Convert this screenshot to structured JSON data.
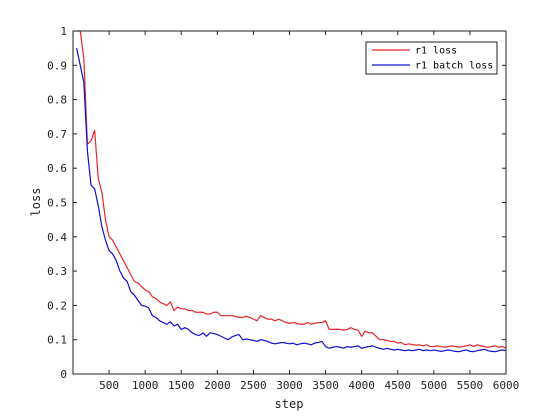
{
  "chart_data": {
    "type": "line",
    "title": "",
    "xlabel": "step",
    "ylabel": "loss",
    "xlim": [
      0,
      6000
    ],
    "ylim": [
      0,
      1
    ],
    "xticks": [
      500,
      1000,
      1500,
      2000,
      2500,
      3000,
      3500,
      4000,
      4500,
      5000,
      5500,
      6000
    ],
    "yticks": [
      0,
      0.1,
      0.2,
      0.3,
      0.4,
      0.5,
      0.6,
      0.7,
      0.8,
      0.9,
      1
    ],
    "xtick_labels": [
      "500",
      "1000",
      "1500",
      "2000",
      "2500",
      "3000",
      "3500",
      "4000",
      "4500",
      "5000",
      "5500",
      "6000"
    ],
    "ytick_labels": [
      "0",
      "0.1",
      "0.2",
      "0.3",
      "0.4",
      "0.5",
      "0.6",
      "0.7",
      "0.8",
      "0.9",
      "1"
    ],
    "grid": false,
    "legend_position": "top-right",
    "series": [
      {
        "name": "r1 loss",
        "color": "#e8262a",
        "x": [
          50,
          100,
          150,
          200,
          250,
          300,
          350,
          400,
          450,
          500,
          550,
          600,
          650,
          700,
          750,
          800,
          850,
          900,
          950,
          1000,
          1050,
          1100,
          1150,
          1200,
          1250,
          1300,
          1350,
          1400,
          1450,
          1500,
          1550,
          1600,
          1650,
          1700,
          1750,
          1800,
          1850,
          1900,
          1950,
          2000,
          2050,
          2100,
          2150,
          2200,
          2250,
          2300,
          2350,
          2400,
          2450,
          2500,
          2550,
          2600,
          2650,
          2700,
          2750,
          2800,
          2850,
          2900,
          2950,
          3000,
          3050,
          3100,
          3150,
          3200,
          3250,
          3300,
          3350,
          3400,
          3450,
          3500,
          3550,
          3600,
          3650,
          3700,
          3750,
          3800,
          3850,
          3900,
          3950,
          4000,
          4050,
          4100,
          4150,
          4200,
          4250,
          4300,
          4350,
          4400,
          4450,
          4500,
          4550,
          4600,
          4650,
          4700,
          4750,
          4800,
          4850,
          4900,
          4950,
          5000,
          5050,
          5100,
          5150,
          5200,
          5250,
          5300,
          5350,
          5400,
          5450,
          5500,
          5550,
          5600,
          5650,
          5700,
          5750,
          5800,
          5850,
          5900,
          5950,
          6000
        ],
        "values": [
          1.0,
          1.0,
          0.92,
          0.67,
          0.68,
          0.71,
          0.57,
          0.53,
          0.45,
          0.4,
          0.39,
          0.37,
          0.35,
          0.33,
          0.31,
          0.29,
          0.27,
          0.265,
          0.255,
          0.245,
          0.24,
          0.225,
          0.22,
          0.21,
          0.205,
          0.2,
          0.21,
          0.185,
          0.195,
          0.19,
          0.19,
          0.185,
          0.185,
          0.18,
          0.18,
          0.18,
          0.175,
          0.175,
          0.18,
          0.18,
          0.17,
          0.17,
          0.17,
          0.17,
          0.168,
          0.165,
          0.165,
          0.168,
          0.165,
          0.16,
          0.155,
          0.17,
          0.165,
          0.16,
          0.16,
          0.155,
          0.16,
          0.155,
          0.15,
          0.148,
          0.15,
          0.148,
          0.145,
          0.145,
          0.15,
          0.145,
          0.148,
          0.15,
          0.15,
          0.155,
          0.13,
          0.13,
          0.13,
          0.13,
          0.128,
          0.13,
          0.135,
          0.13,
          0.128,
          0.11,
          0.125,
          0.12,
          0.12,
          0.11,
          0.1,
          0.1,
          0.098,
          0.095,
          0.095,
          0.09,
          0.092,
          0.085,
          0.088,
          0.086,
          0.084,
          0.085,
          0.082,
          0.085,
          0.08,
          0.08,
          0.082,
          0.08,
          0.078,
          0.08,
          0.082,
          0.08,
          0.078,
          0.08,
          0.082,
          0.085,
          0.08,
          0.085,
          0.082,
          0.08,
          0.078,
          0.08,
          0.082,
          0.078,
          0.08,
          0.075
        ]
      },
      {
        "name": "r1 batch loss",
        "color": "#1010d0",
        "x": [
          50,
          100,
          150,
          200,
          250,
          300,
          350,
          400,
          450,
          500,
          550,
          600,
          650,
          700,
          750,
          800,
          850,
          900,
          950,
          1000,
          1050,
          1100,
          1150,
          1200,
          1250,
          1300,
          1350,
          1400,
          1450,
          1500,
          1550,
          1600,
          1650,
          1700,
          1750,
          1800,
          1850,
          1900,
          1950,
          2000,
          2050,
          2100,
          2150,
          2200,
          2250,
          2300,
          2350,
          2400,
          2450,
          2500,
          2550,
          2600,
          2650,
          2700,
          2750,
          2800,
          2850,
          2900,
          2950,
          3000,
          3050,
          3100,
          3150,
          3200,
          3250,
          3300,
          3350,
          3400,
          3450,
          3500,
          3550,
          3600,
          3650,
          3700,
          3750,
          3800,
          3850,
          3900,
          3950,
          4000,
          4050,
          4100,
          4150,
          4200,
          4250,
          4300,
          4350,
          4400,
          4450,
          4500,
          4550,
          4600,
          4650,
          4700,
          4750,
          4800,
          4850,
          4900,
          4950,
          5000,
          5050,
          5100,
          5150,
          5200,
          5250,
          5300,
          5350,
          5400,
          5450,
          5500,
          5550,
          5600,
          5650,
          5700,
          5750,
          5800,
          5850,
          5900,
          5950,
          6000
        ],
        "values": [
          0.95,
          0.9,
          0.85,
          0.65,
          0.55,
          0.54,
          0.49,
          0.43,
          0.39,
          0.36,
          0.35,
          0.33,
          0.3,
          0.28,
          0.27,
          0.24,
          0.23,
          0.215,
          0.2,
          0.198,
          0.192,
          0.17,
          0.165,
          0.155,
          0.15,
          0.145,
          0.152,
          0.14,
          0.145,
          0.13,
          0.135,
          0.13,
          0.12,
          0.115,
          0.112,
          0.12,
          0.11,
          0.12,
          0.118,
          0.115,
          0.11,
          0.105,
          0.1,
          0.108,
          0.112,
          0.115,
          0.1,
          0.102,
          0.1,
          0.098,
          0.095,
          0.1,
          0.098,
          0.095,
          0.09,
          0.088,
          0.09,
          0.092,
          0.09,
          0.088,
          0.09,
          0.085,
          0.088,
          0.09,
          0.088,
          0.085,
          0.09,
          0.092,
          0.095,
          0.08,
          0.075,
          0.078,
          0.08,
          0.078,
          0.075,
          0.08,
          0.078,
          0.08,
          0.082,
          0.075,
          0.078,
          0.08,
          0.082,
          0.078,
          0.075,
          0.072,
          0.075,
          0.072,
          0.07,
          0.072,
          0.07,
          0.068,
          0.07,
          0.068,
          0.07,
          0.072,
          0.068,
          0.07,
          0.068,
          0.07,
          0.068,
          0.066,
          0.068,
          0.07,
          0.068,
          0.066,
          0.065,
          0.068,
          0.07,
          0.066,
          0.065,
          0.068,
          0.07,
          0.072,
          0.068,
          0.066,
          0.065,
          0.068,
          0.07,
          0.068
        ]
      }
    ]
  }
}
